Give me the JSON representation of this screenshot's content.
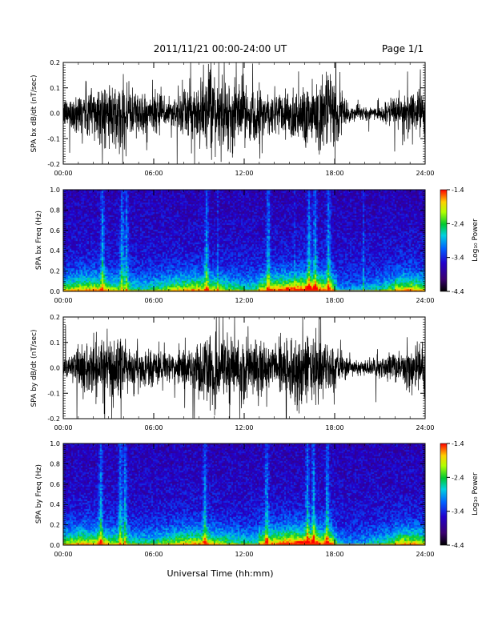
{
  "header": {
    "date_range": "2011/11/21  00:00-24:00 UT",
    "page": "Page 1/1"
  },
  "x_axis": {
    "label": "Universal Time (hh:mm)",
    "ticks": [
      "00:00",
      "06:00",
      "12:00",
      "18:00",
      "24:00"
    ]
  },
  "colorbar": {
    "label": "Log₁₀ Power",
    "ticks": [
      "-1.4",
      "-2.4",
      "-3.4",
      "-4.4"
    ]
  },
  "chart_data": [
    {
      "type": "line",
      "ylabel": "SPA bx dB/dt (nT/sec)",
      "xlim": [
        0,
        24
      ],
      "ylim": [
        -0.2,
        0.2
      ],
      "yticks": [
        "-0.2",
        "-0.1",
        "0.0",
        "0.1",
        "0.2"
      ],
      "note": "dense noisy time series",
      "amplitude_envelope": {
        "x": [
          0,
          1,
          2,
          3,
          4,
          5,
          6,
          7,
          8,
          9,
          10,
          11,
          12,
          13,
          14,
          15,
          16,
          17,
          18,
          19,
          20,
          21,
          22,
          23,
          24
        ],
        "y": [
          0.06,
          0.09,
          0.14,
          0.12,
          0.13,
          0.1,
          0.08,
          0.07,
          0.1,
          0.14,
          0.16,
          0.15,
          0.12,
          0.11,
          0.09,
          0.11,
          0.14,
          0.16,
          0.14,
          0.03,
          0.03,
          0.03,
          0.06,
          0.1,
          0.12
        ]
      }
    },
    {
      "type": "heatmap",
      "ylabel": "SPA bx Freq (Hz)",
      "xlim": [
        0,
        24
      ],
      "ylim": [
        0,
        1
      ],
      "yticks": [
        "0.0",
        "0.2",
        "0.4",
        "0.6",
        "0.8",
        "1.0"
      ],
      "zlim": [
        -4.4,
        -1.4
      ],
      "bursts_hours": [
        2.6,
        3.9,
        4.2,
        9.5,
        13.6,
        16.3,
        16.7,
        17.6
      ]
    },
    {
      "type": "line",
      "ylabel": "SPA by dB/dt (nT/sec)",
      "xlim": [
        0,
        24
      ],
      "ylim": [
        -0.2,
        0.2
      ],
      "yticks": [
        "-0.2",
        "-0.1",
        "0.0",
        "0.1",
        "0.2"
      ],
      "note": "dense noisy time series",
      "amplitude_envelope": {
        "x": [
          0,
          1,
          2,
          3,
          4,
          5,
          6,
          7,
          8,
          9,
          10,
          11,
          12,
          13,
          14,
          15,
          16,
          17,
          18,
          19,
          20,
          21,
          22,
          23,
          24
        ],
        "y": [
          0.05,
          0.08,
          0.13,
          0.13,
          0.12,
          0.1,
          0.07,
          0.06,
          0.09,
          0.13,
          0.15,
          0.16,
          0.12,
          0.11,
          0.1,
          0.12,
          0.15,
          0.14,
          0.1,
          0.04,
          0.03,
          0.04,
          0.07,
          0.09,
          0.1
        ]
      }
    },
    {
      "type": "heatmap",
      "ylabel": "SPA by Freq (Hz)",
      "xlim": [
        0,
        24
      ],
      "ylim": [
        0,
        1
      ],
      "yticks": [
        "0.0",
        "0.2",
        "0.4",
        "0.6",
        "0.8",
        "1.0"
      ],
      "zlim": [
        -4.4,
        -1.4
      ],
      "bursts_hours": [
        2.5,
        3.8,
        4.1,
        9.4,
        13.5,
        16.2,
        16.6,
        17.5
      ]
    }
  ]
}
